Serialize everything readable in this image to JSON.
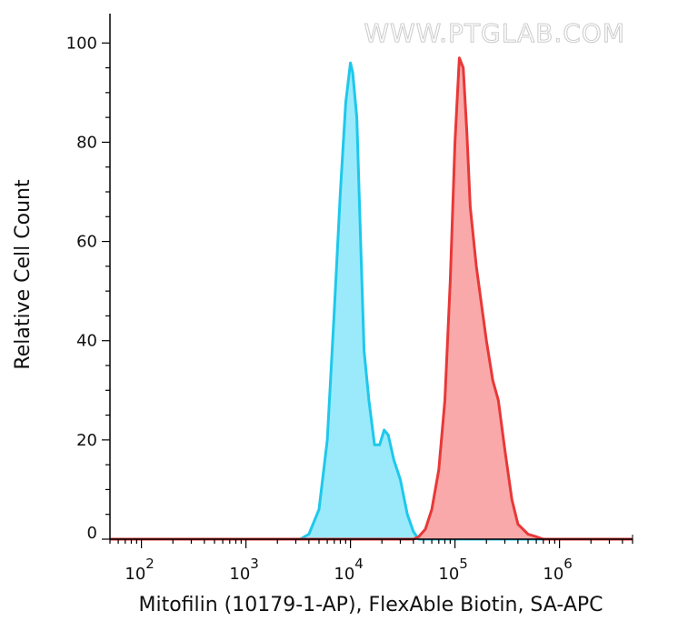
{
  "watermark": "WWW.PTGLAB.COM",
  "chart_data": {
    "type": "area",
    "xlabel": "Mitofilin (10179-1-AP), FlexAble Biotin, SA-APC",
    "ylabel": "Relative Cell Count",
    "x_scale": "log10",
    "xlim": [
      50,
      5000000
    ],
    "ylim": [
      0,
      105
    ],
    "y_ticks": [
      0,
      20,
      40,
      60,
      80,
      100
    ],
    "x_ticks": [
      {
        "value": 100,
        "base": "10",
        "exp": "2"
      },
      {
        "value": 1000,
        "base": "10",
        "exp": "3"
      },
      {
        "value": 10000,
        "base": "10",
        "exp": "4"
      },
      {
        "value": 100000,
        "base": "10",
        "exp": "5"
      },
      {
        "value": 1000000,
        "base": "10",
        "exp": "6"
      }
    ],
    "grid": false,
    "legend": "none",
    "series": [
      {
        "color": "#1ec8ec",
        "fill": "#9aeafb",
        "x": [
          50,
          3300,
          4000,
          5000,
          6000,
          7000,
          8000,
          9000,
          10000,
          10500,
          11500,
          12500,
          13500,
          15000,
          17000,
          19000,
          21000,
          23000,
          26000,
          30000,
          35000,
          40000,
          45000,
          50000,
          5000000
        ],
        "y": [
          0,
          0,
          1,
          6,
          20,
          46,
          70,
          88,
          96,
          94,
          85,
          60,
          38,
          28,
          19,
          19,
          22,
          21,
          16,
          12,
          5,
          1.5,
          0,
          0,
          0
        ]
      },
      {
        "color": "#e83838",
        "fill": "#f9a9a9",
        "x": [
          50,
          40000,
          45000,
          52000,
          60000,
          70000,
          80000,
          90000,
          100000,
          110000,
          120000,
          130000,
          140000,
          160000,
          180000,
          200000,
          230000,
          260000,
          300000,
          350000,
          400000,
          500000,
          600000,
          700000,
          5000000
        ],
        "y": [
          0,
          0,
          0.5,
          2,
          6,
          14,
          28,
          52,
          80,
          97,
          95,
          82,
          67,
          55,
          47,
          40,
          32,
          28,
          18,
          8,
          3,
          1,
          0.5,
          0,
          0
        ]
      }
    ]
  }
}
